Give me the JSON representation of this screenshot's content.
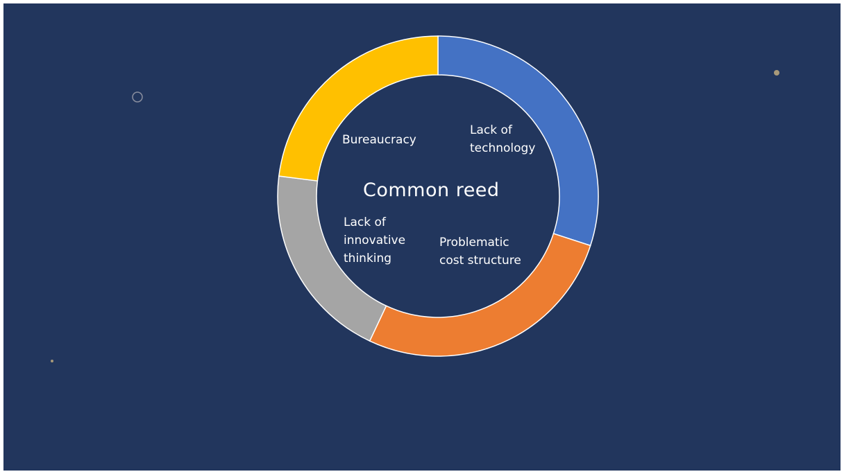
{
  "chart_data": {
    "type": "donut",
    "center_label": "Common reed",
    "categories": [
      "Lack of\ntechnology",
      "Problematic\ncost structure",
      "Lack of\ninnovative\nthinking",
      "Bureaucracy"
    ],
    "values": [
      30,
      27,
      20,
      23
    ],
    "colors": [
      "#4472c4",
      "#ed7d31",
      "#a5a5a5",
      "#ffc000"
    ],
    "background": "#22365d",
    "segment_border": "#ffffff"
  },
  "decorations": {
    "dot_color": "#a89a7a",
    "ring_color": "#8a8f9f"
  }
}
